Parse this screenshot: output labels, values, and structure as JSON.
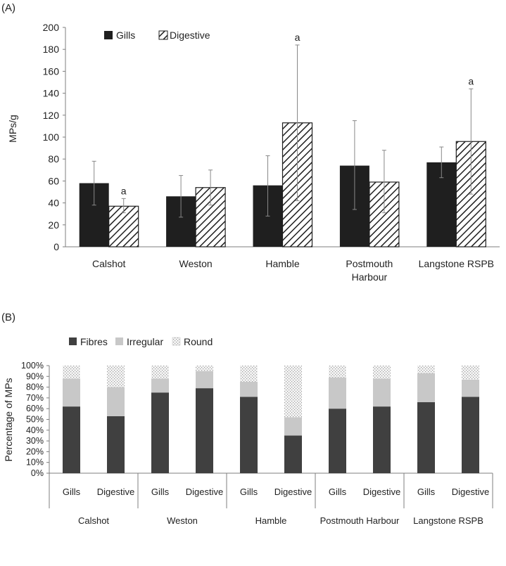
{
  "panel_a_label": "(A)",
  "panel_b_label": "(B)",
  "colors": {
    "gills": "#1f1f1f",
    "hatch": "#1f1f1f",
    "fibres": "#404040",
    "irregular": "#c8c8c8",
    "round_bg": "#f4f4f4",
    "round_dot": "#9a9a9a",
    "error_bar": "#888888",
    "axis": "#7f7f7f"
  },
  "chart_data": [
    {
      "type": "bar",
      "title": "",
      "xlabel": "",
      "ylabel": "MPs/g",
      "ylim": [
        0,
        200
      ],
      "yticks": [
        0,
        20,
        40,
        60,
        80,
        100,
        120,
        140,
        160,
        180,
        200
      ],
      "categories": [
        [
          "Calshot"
        ],
        [
          "Weston"
        ],
        [
          "Hamble"
        ],
        [
          "Postmouth",
          "Harbour"
        ],
        [
          "Langstone RSPB"
        ]
      ],
      "legend_position": "top-left",
      "series": [
        {
          "name": "Gills",
          "pattern": "solid",
          "values": [
            58,
            46,
            56,
            74,
            77
          ],
          "error_low": [
            38,
            27,
            28,
            34,
            63
          ],
          "error_high": [
            78,
            65,
            83,
            115,
            91
          ],
          "annotations": [
            "",
            "",
            "",
            "",
            ""
          ]
        },
        {
          "name": "Digestive",
          "pattern": "hatched",
          "values": [
            37,
            54,
            113,
            59,
            96
          ],
          "error_low": [
            31,
            38,
            42,
            31,
            48
          ],
          "error_high": [
            44,
            70,
            184,
            88,
            144
          ],
          "annotations": [
            "a",
            "",
            "a",
            "",
            "a"
          ]
        }
      ]
    },
    {
      "type": "bar",
      "stacked": true,
      "title": "",
      "xlabel": "",
      "ylabel": "Percentage of MPs",
      "ylim": [
        0,
        100
      ],
      "yticks": [
        "0%",
        "10%",
        "20%",
        "30%",
        "40%",
        "50%",
        "60%",
        "70%",
        "80%",
        "90%",
        "100%"
      ],
      "legend_position": "top-left",
      "groups": [
        "Calshot",
        "Weston",
        "Hamble",
        "Postmouth Harbour",
        "Langstone RSPB"
      ],
      "subcategories": [
        "Gills",
        "Digestive"
      ],
      "series": [
        {
          "name": "Fibres",
          "values": [
            62,
            53,
            75,
            79,
            71,
            35,
            60,
            62,
            66,
            71
          ]
        },
        {
          "name": "Irregular",
          "values": [
            26,
            27,
            13,
            16,
            14,
            17,
            29,
            26,
            27,
            16
          ]
        },
        {
          "name": "Round",
          "values": [
            12,
            20,
            12,
            5,
            15,
            48,
            11,
            12,
            7,
            13
          ]
        }
      ]
    }
  ]
}
